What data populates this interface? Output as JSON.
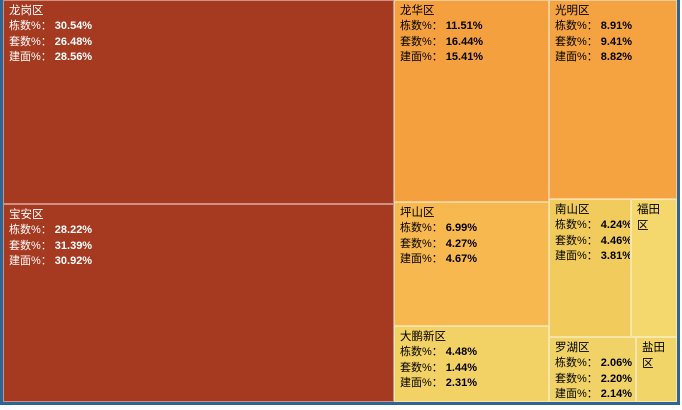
{
  "frame": {
    "border_color": "#2B6695",
    "page_background": "#FFFFFF",
    "divider_color": "rgba(255,255,255,0.45)"
  },
  "metric_labels": {
    "dong": "栋数%：",
    "tao": "套数%：",
    "jian": "建面%："
  },
  "chart_data": {
    "type": "treemap",
    "title": "",
    "metrics": [
      "栋数%",
      "套数%",
      "建面%"
    ],
    "legend_position": "none",
    "color_scale": [
      "#A53A21",
      "#F5A03E",
      "#F7B84F",
      "#F2D165",
      "#F4D76D"
    ],
    "nodes": [
      {
        "name": "龙岗区",
        "dong": "30.54%",
        "tao": "26.48%",
        "jian": "28.56%",
        "color": "#A53A21",
        "text_color": "#FFFFFF"
      },
      {
        "name": "宝安区",
        "dong": "28.22%",
        "tao": "31.39%",
        "jian": "30.92%",
        "color": "#A53A21",
        "text_color": "#FFFFFF"
      },
      {
        "name": "龙华区",
        "dong": "11.51%",
        "tao": "16.44%",
        "jian": "15.41%",
        "color": "#F5A03E",
        "text_color": "#000000"
      },
      {
        "name": "光明区",
        "dong": "8.91%",
        "tao": "9.41%",
        "jian": "8.82%",
        "color": "#F5A340",
        "text_color": "#000000"
      },
      {
        "name": "坪山区",
        "dong": "6.99%",
        "tao": "4.27%",
        "jian": "4.67%",
        "color": "#F7B84F",
        "text_color": "#000000"
      },
      {
        "name": "南山区",
        "dong": "4.24%",
        "tao": "4.46%",
        "jian": "3.81%",
        "color": "#F1CC5C",
        "text_color": "#000000"
      },
      {
        "name": "福田区",
        "color": "#F4D76D",
        "text_color": "#000000"
      },
      {
        "name": "大鹏新区",
        "dong": "4.48%",
        "tao": "1.44%",
        "jian": "2.31%",
        "color": "#F2D165",
        "text_color": "#000000"
      },
      {
        "name": "罗湖区",
        "dong": "2.06%",
        "tao": "2.20%",
        "jian": "2.14%",
        "color": "#F0D266",
        "text_color": "#000000"
      },
      {
        "name": "盐田区",
        "color": "#F2D569",
        "text_color": "#000000"
      }
    ]
  }
}
